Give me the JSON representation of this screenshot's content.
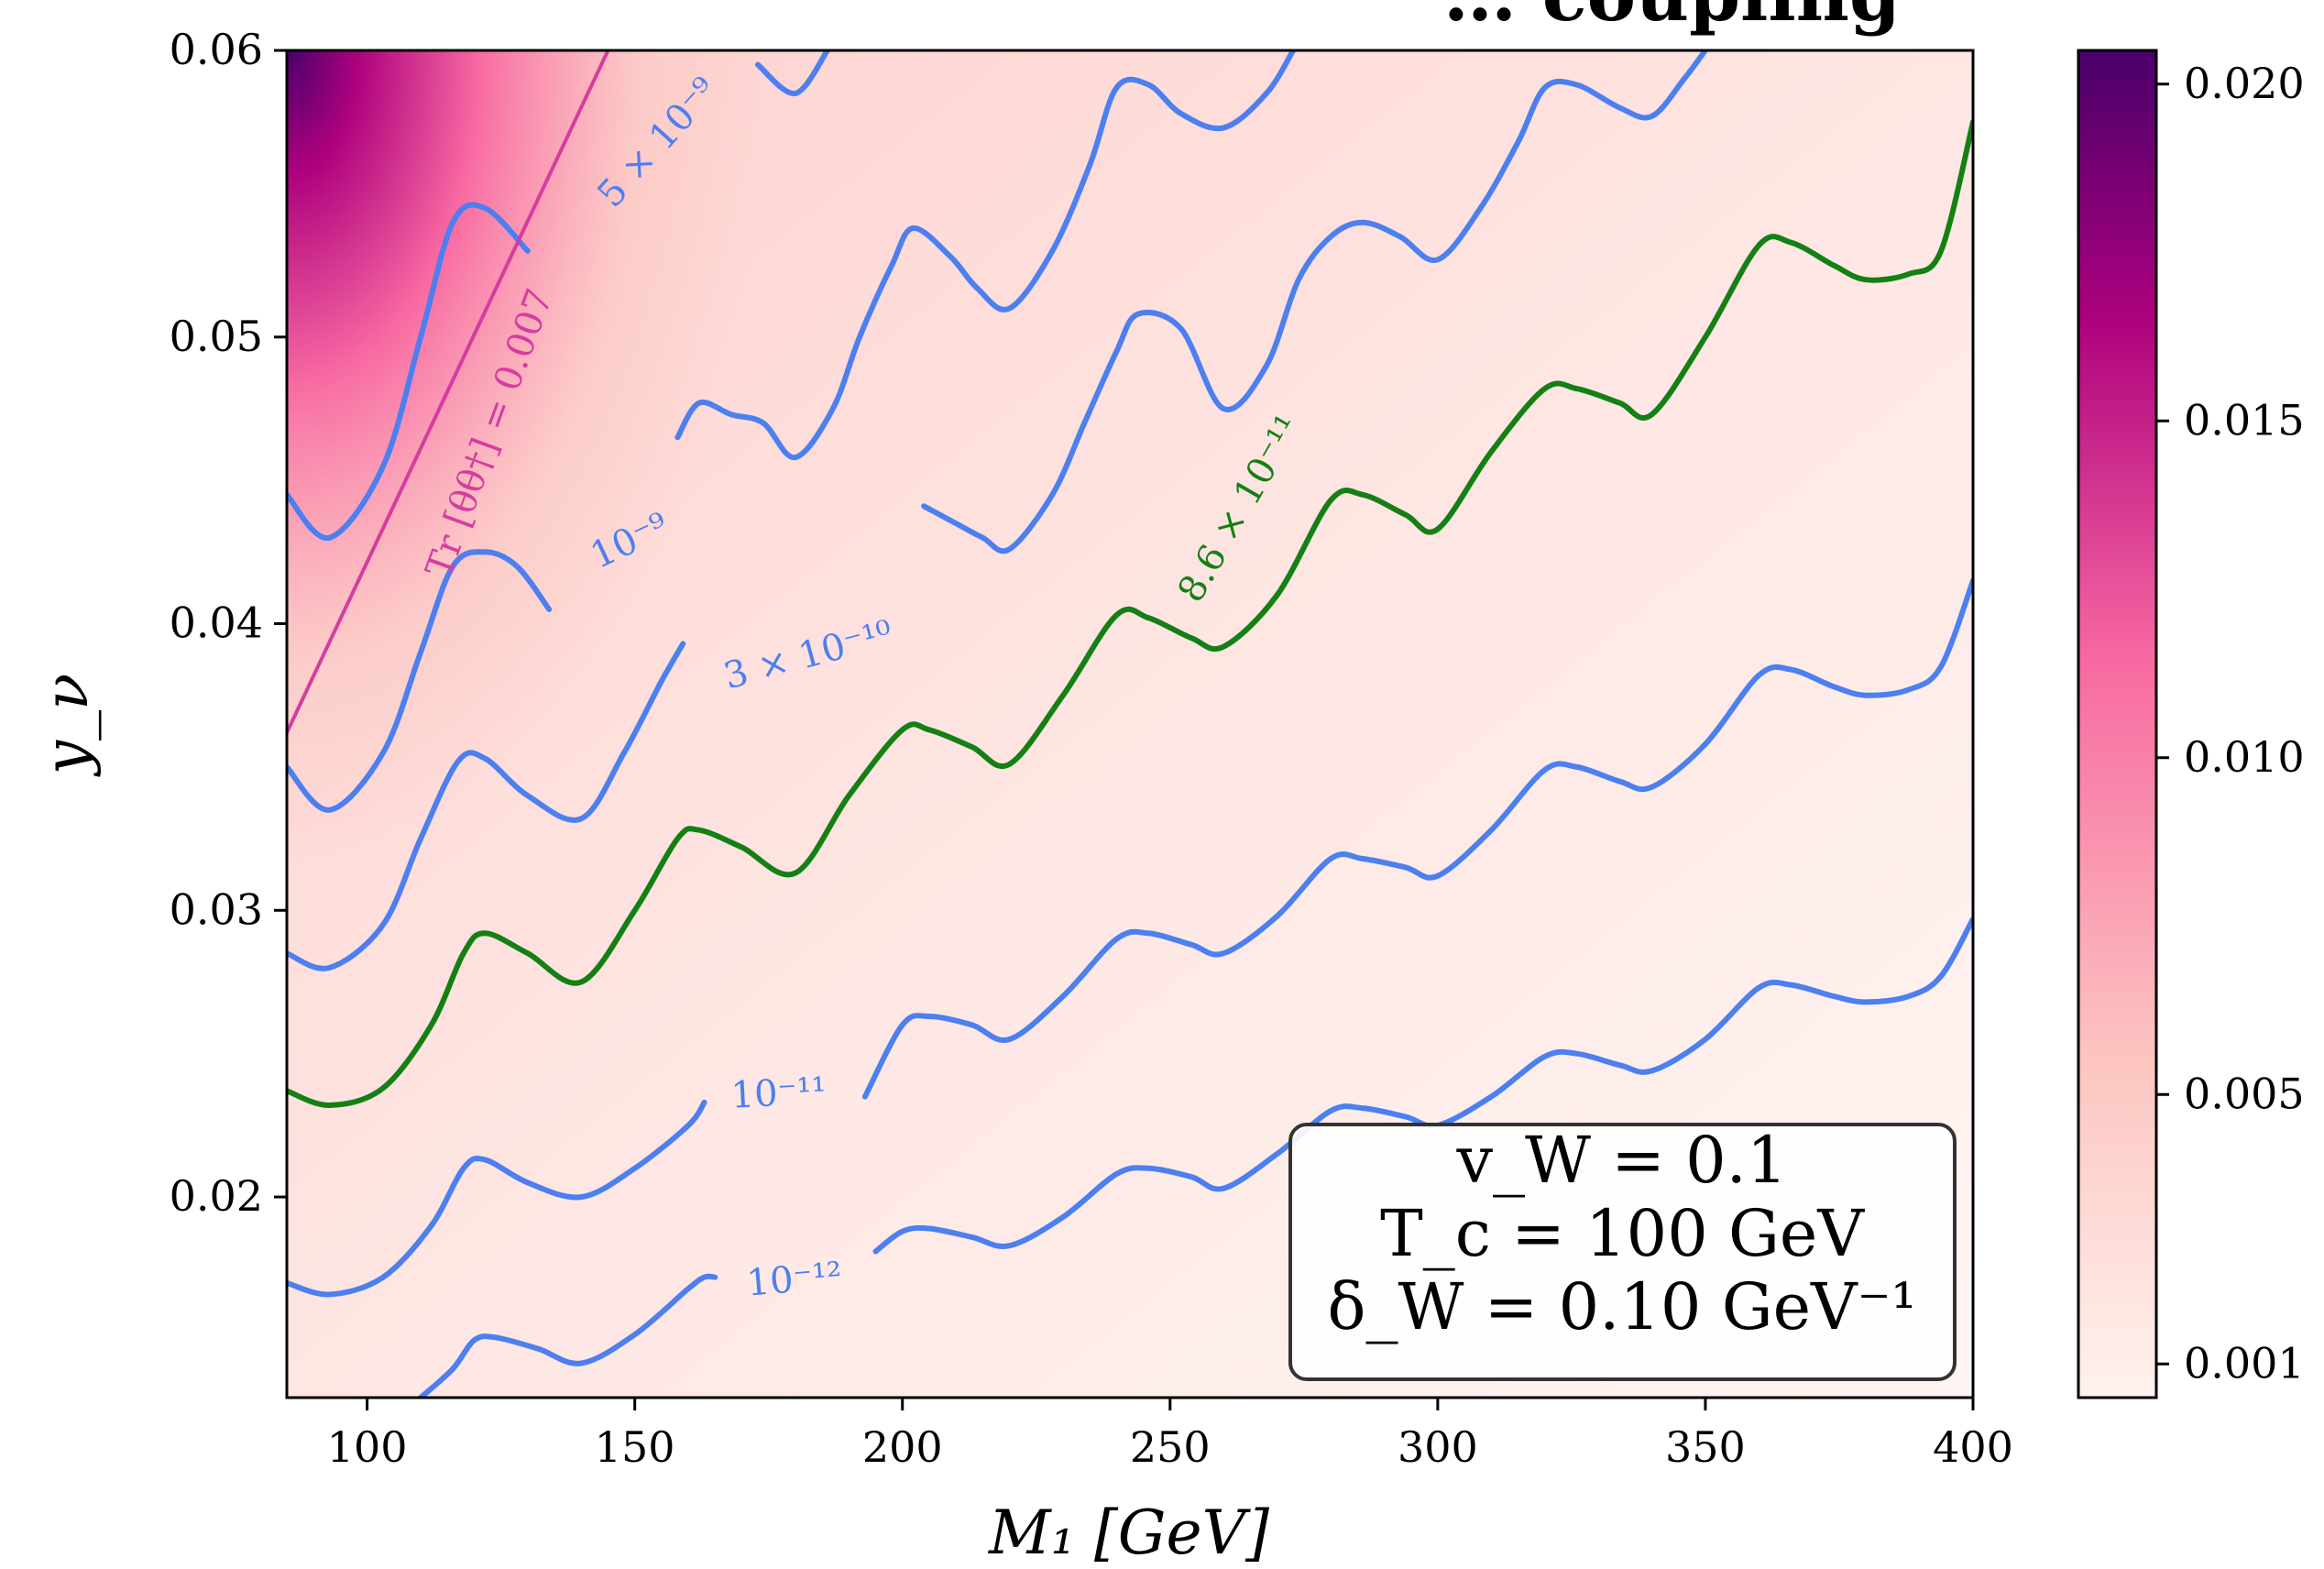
{
  "chart_data": {
    "type": "contour",
    "title": "… coupling",
    "xlabel": "M₁ [GeV]",
    "ylabel": "y_ν",
    "xlim": [
      85,
      400
    ],
    "ylim": [
      0.013,
      0.06
    ],
    "x_ticks": [
      "100",
      "150",
      "200",
      "250",
      "300",
      "350",
      "400"
    ],
    "x_tick_values": [
      100,
      150,
      200,
      250,
      300,
      350,
      400
    ],
    "y_ticks": [
      "0.02",
      "0.03",
      "0.04",
      "0.05",
      "0.06"
    ],
    "y_tick_values": [
      0.02,
      0.03,
      0.04,
      0.05,
      0.06
    ],
    "colorbar": {
      "ticks": [
        "0.020",
        "0.015",
        "0.010",
        "0.005",
        "0.001"
      ],
      "tick_values": [
        0.02,
        0.015,
        0.01,
        0.005,
        0.001
      ],
      "range": [
        0.0005,
        0.0205
      ],
      "colors": [
        "#fff2ee",
        "#fcc5c0",
        "#f768a1",
        "#ae017e",
        "#49006a"
      ]
    },
    "background": {
      "description_free": true,
      "gradient": [
        {
          "x": 85,
          "y": 0.06,
          "value": 0.02
        },
        {
          "x": 85,
          "y": 0.045,
          "value": 0.012
        },
        {
          "x": 85,
          "y": 0.035,
          "value": 0.006
        },
        {
          "x": 200,
          "y": 0.06,
          "value": 0.004
        },
        {
          "x": 400,
          "y": 0.013,
          "value": 0.001
        }
      ]
    },
    "contours": [
      {
        "label": "5 × 10⁻⁹",
        "color": "#4c7ff0",
        "points": [
          [
            85,
            0.0445
          ],
          [
            93,
            0.043
          ],
          [
            103,
            0.0455
          ],
          [
            110,
            0.05
          ],
          [
            116,
            0.054
          ],
          [
            122,
            0.0545
          ],
          [
            130,
            0.053
          ]
        ]
      },
      {
        "label": "5 × 10⁻⁹ (upper)",
        "color": "#4c7ff0",
        "points": [
          [
            173,
            0.0595
          ],
          [
            180,
            0.0585
          ],
          [
            186,
            0.06
          ]
        ]
      },
      {
        "label": "10⁻⁹",
        "color": "#4c7ff0",
        "points": [
          [
            85,
            0.035
          ],
          [
            93,
            0.0335
          ],
          [
            103,
            0.0355
          ],
          [
            110,
            0.039
          ],
          [
            116,
            0.042
          ],
          [
            122,
            0.0425
          ],
          [
            128,
            0.042
          ],
          [
            134,
            0.0405
          ]
        ]
      },
      {
        "label": "10⁻⁹ (cont.)",
        "color": "#4c7ff0",
        "points": [
          [
            158,
            0.0465
          ],
          [
            162,
            0.0477
          ],
          [
            168,
            0.0473
          ],
          [
            174,
            0.047
          ],
          [
            180,
            0.0458
          ],
          [
            187,
            0.0475
          ],
          [
            192,
            0.05
          ],
          [
            198,
            0.0525
          ],
          [
            202,
            0.0538
          ],
          [
            209,
            0.0528
          ],
          [
            214,
            0.0517
          ],
          [
            220,
            0.051
          ],
          [
            228,
            0.053
          ],
          [
            235,
            0.056
          ],
          [
            240,
            0.0587
          ],
          [
            246,
            0.0588
          ],
          [
            252,
            0.0578
          ],
          [
            260,
            0.0573
          ],
          [
            268,
            0.0585
          ],
          [
            273,
            0.06
          ]
        ]
      },
      {
        "label": "3 × 10⁻¹⁰",
        "color": "#4c7ff0",
        "points": [
          [
            85,
            0.0285
          ],
          [
            93,
            0.028
          ],
          [
            103,
            0.0295
          ],
          [
            110,
            0.0325
          ],
          [
            117,
            0.0352
          ],
          [
            122,
            0.0353
          ],
          [
            130,
            0.034
          ],
          [
            140,
            0.0332
          ],
          [
            148,
            0.0355
          ],
          [
            155,
            0.038
          ],
          [
            159,
            0.0393
          ]
        ]
      },
      {
        "label": "3 × 10⁻¹⁰ (cont.)",
        "color": "#4c7ff0",
        "points": [
          [
            204,
            0.0441
          ],
          [
            210,
            0.0435
          ],
          [
            215,
            0.043
          ],
          [
            220,
            0.0426
          ],
          [
            228,
            0.0445
          ],
          [
            234,
            0.047
          ],
          [
            240,
            0.0495
          ],
          [
            244,
            0.0508
          ],
          [
            252,
            0.0503
          ],
          [
            260,
            0.0475
          ],
          [
            268,
            0.049
          ],
          [
            274,
            0.052
          ],
          [
            280,
            0.0535
          ],
          [
            286,
            0.054
          ],
          [
            293,
            0.0535
          ],
          [
            300,
            0.0527
          ],
          [
            308,
            0.0545
          ],
          [
            315,
            0.0568
          ],
          [
            320,
            0.0587
          ],
          [
            326,
            0.0588
          ],
          [
            334,
            0.058
          ],
          [
            340,
            0.0577
          ],
          [
            346,
            0.059
          ],
          [
            350,
            0.06
          ]
        ]
      },
      {
        "label": "8.6 × 10⁻¹¹",
        "color": "#148014",
        "points": [
          [
            85,
            0.0237
          ],
          [
            93,
            0.0232
          ],
          [
            103,
            0.0238
          ],
          [
            112,
            0.026
          ],
          [
            118,
            0.0285
          ],
          [
            122,
            0.0292
          ],
          [
            130,
            0.0285
          ],
          [
            140,
            0.0275
          ],
          [
            150,
            0.03
          ],
          [
            158,
            0.0325
          ],
          [
            162,
            0.0328
          ],
          [
            170,
            0.0322
          ],
          [
            180,
            0.0313
          ],
          [
            190,
            0.034
          ],
          [
            200,
            0.0363
          ],
          [
            205,
            0.0363
          ],
          [
            213,
            0.0357
          ],
          [
            220,
            0.0351
          ],
          [
            230,
            0.0375
          ],
          [
            240,
            0.0403
          ],
          [
            246,
            0.0402
          ],
          [
            254,
            0.0395
          ],
          [
            260,
            0.0392
          ],
          [
            270,
            0.041
          ],
          [
            280,
            0.0443
          ],
          [
            286,
            0.0445
          ],
          [
            294,
            0.0438
          ],
          [
            300,
            0.0433
          ],
          [
            310,
            0.046
          ],
          [
            320,
            0.0482
          ],
          [
            326,
            0.0482
          ],
          [
            334,
            0.0477
          ],
          [
            340,
            0.0473
          ],
          [
            350,
            0.05
          ],
          [
            360,
            0.0532
          ],
          [
            366,
            0.0533
          ],
          [
            374,
            0.0525
          ],
          [
            380,
            0.052
          ],
          [
            388,
            0.0522
          ],
          [
            394,
            0.053
          ],
          [
            400,
            0.0575
          ]
        ]
      },
      {
        "label": "10⁻¹¹",
        "color": "#4c7ff0",
        "points": [
          [
            85,
            0.017
          ],
          [
            93,
            0.0166
          ],
          [
            103,
            0.0172
          ],
          [
            112,
            0.019
          ],
          [
            118,
            0.021
          ],
          [
            122,
            0.0213
          ],
          [
            130,
            0.0205
          ],
          [
            140,
            0.02
          ],
          [
            150,
            0.021
          ],
          [
            160,
            0.0225
          ],
          [
            163,
            0.0233
          ]
        ]
      },
      {
        "label": "10⁻¹¹ (cont.)",
        "color": "#4c7ff0",
        "points": [
          [
            193,
            0.0235
          ],
          [
            200,
            0.026
          ],
          [
            205,
            0.0263
          ],
          [
            213,
            0.026
          ],
          [
            220,
            0.0255
          ],
          [
            230,
            0.027
          ],
          [
            240,
            0.029
          ],
          [
            246,
            0.0292
          ],
          [
            254,
            0.0288
          ],
          [
            260,
            0.0285
          ],
          [
            270,
            0.0298
          ],
          [
            280,
            0.0318
          ],
          [
            286,
            0.0318
          ],
          [
            294,
            0.0315
          ],
          [
            300,
            0.0312
          ],
          [
            310,
            0.0328
          ],
          [
            320,
            0.0349
          ],
          [
            326,
            0.035
          ],
          [
            334,
            0.0345
          ],
          [
            340,
            0.0343
          ],
          [
            350,
            0.0358
          ],
          [
            360,
            0.0382
          ],
          [
            366,
            0.0384
          ],
          [
            374,
            0.0378
          ],
          [
            380,
            0.0375
          ],
          [
            388,
            0.0377
          ],
          [
            394,
            0.0385
          ],
          [
            400,
            0.0415
          ]
        ]
      },
      {
        "label": "10⁻¹²",
        "color": "#4c7ff0",
        "points": [
          [
            110,
            0.013
          ],
          [
            116,
            0.014
          ],
          [
            120,
            0.015
          ],
          [
            124,
            0.0151
          ],
          [
            132,
            0.0147
          ],
          [
            140,
            0.0142
          ],
          [
            150,
            0.0152
          ],
          [
            160,
            0.0168
          ],
          [
            163,
            0.0172
          ],
          [
            165,
            0.0172
          ]
        ]
      },
      {
        "label": "10⁻¹² (cont.)",
        "color": "#4c7ff0",
        "points": [
          [
            195,
            0.0181
          ],
          [
            200,
            0.0188
          ],
          [
            205,
            0.0189
          ],
          [
            213,
            0.0186
          ],
          [
            220,
            0.0183
          ],
          [
            230,
            0.0193
          ],
          [
            240,
            0.0208
          ],
          [
            246,
            0.021
          ],
          [
            254,
            0.0207
          ],
          [
            260,
            0.0203
          ],
          [
            270,
            0.0215
          ],
          [
            280,
            0.023
          ],
          [
            286,
            0.0231
          ],
          [
            294,
            0.0228
          ],
          [
            300,
            0.0225
          ],
          [
            310,
            0.0235
          ],
          [
            320,
            0.0249
          ],
          [
            326,
            0.025
          ],
          [
            334,
            0.0246
          ],
          [
            340,
            0.0244
          ],
          [
            350,
            0.0255
          ],
          [
            360,
            0.0273
          ],
          [
            366,
            0.0274
          ],
          [
            374,
            0.027
          ],
          [
            380,
            0.0268
          ],
          [
            388,
            0.027
          ],
          [
            394,
            0.0277
          ],
          [
            400,
            0.0297
          ]
        ]
      },
      {
        "label": "Tr [θθ†] = 0.007",
        "color": "#d63ca0",
        "points": [
          [
            85,
            0.0362
          ],
          [
            145,
            0.06
          ]
        ]
      }
    ],
    "contour_labels": [
      {
        "text": "5 × 10⁻⁹",
        "color": "#4c7ff0",
        "x": 156,
        "y": 0.0565,
        "angle": -48
      },
      {
        "text": "10⁻⁹",
        "color": "#4c7ff0",
        "x": 150,
        "y": 0.0425,
        "angle": -25
      },
      {
        "text": "3 × 10⁻¹⁰",
        "color": "#4c7ff0",
        "x": 183,
        "y": 0.0385,
        "angle": -15
      },
      {
        "text": "8.6 × 10⁻¹¹",
        "color": "#148014",
        "x": 265,
        "y": 0.0438,
        "angle": -60
      },
      {
        "text": "10⁻¹¹",
        "color": "#4c7ff0",
        "x": 177,
        "y": 0.0232,
        "angle": -3
      },
      {
        "text": "10⁻¹²",
        "color": "#4c7ff0",
        "x": 180,
        "y": 0.0167,
        "angle": -5
      },
      {
        "text": "Tr [θθ†] = 0.007",
        "color": "#d63ca0",
        "x": 125,
        "y": 0.0465,
        "angle": -70
      }
    ],
    "annotation_box": {
      "lines": [
        "v_W = 0.1",
        "T_c = 100 GeV",
        "δ_W = 0.10 GeV⁻¹"
      ]
    }
  }
}
